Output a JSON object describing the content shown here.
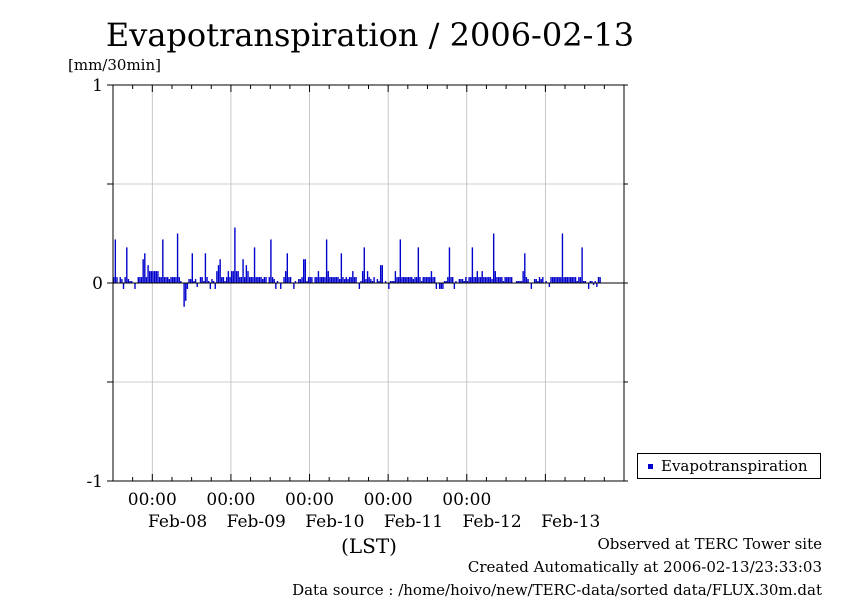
{
  "chart_data": {
    "type": "bar",
    "title": "Evapotranspiration / 2006-02-13",
    "ylabel": "[mm/30min]",
    "xlabel": "(LST)",
    "ylim": [
      -1,
      1
    ],
    "yticks": [
      "1",
      "0",
      "-1"
    ],
    "x_axis": {
      "start": "2006-02-07 12:00",
      "end": "2006-02-13 24:00",
      "time_ticks": [
        "00:00",
        "00:00",
        "00:00",
        "00:00",
        "00:00"
      ],
      "date_ticks": [
        "Feb-08",
        "Feb-09",
        "Feb-10",
        "Feb-11",
        "Feb-12",
        "Feb-13"
      ]
    },
    "grid": true,
    "legend_position": "right",
    "series": [
      {
        "name": "Evapotranspiration",
        "color": "#0000cc",
        "interval_minutes": 30,
        "values": [
          0.03,
          0.22,
          0.03,
          0,
          0.03,
          0.02,
          -0.03,
          0.03,
          0.18,
          0.02,
          0.01,
          0.01,
          0,
          -0.03,
          0,
          0.03,
          0.03,
          0.03,
          0.12,
          0.15,
          0.03,
          0.09,
          0.06,
          0.06,
          0.06,
          0.06,
          0.06,
          0.06,
          0.03,
          0.03,
          0.22,
          0.03,
          0.03,
          0.03,
          0.02,
          0.03,
          0.03,
          0.03,
          0.03,
          0.25,
          0.03,
          0.01,
          0,
          -0.12,
          -0.09,
          -0.03,
          0.02,
          0.02,
          0.15,
          0.01,
          0.02,
          -0.02,
          0,
          0.03,
          0.03,
          0.01,
          0.15,
          0.03,
          0.01,
          -0.03,
          0.02,
          0.01,
          -0.03,
          0.06,
          0.09,
          0.12,
          0.03,
          0.03,
          0.01,
          0.03,
          0.06,
          0.03,
          0.06,
          0.06,
          0.28,
          0.06,
          0.06,
          0.03,
          0.03,
          0.12,
          0.03,
          0.09,
          0.06,
          0.03,
          0.03,
          0.03,
          0.18,
          0.03,
          0.03,
          0.03,
          0.03,
          0.02,
          0.03,
          0.03,
          0,
          0.03,
          0.22,
          0.03,
          0.02,
          -0.03,
          0.01,
          0,
          -0.03,
          0,
          0.03,
          0.06,
          0.15,
          0.03,
          0.03,
          0,
          -0.03,
          0.01,
          0,
          0.02,
          0.02,
          0.03,
          0.12,
          0.12,
          0.01,
          0.03,
          0.03,
          0.03,
          0,
          0.03,
          0.03,
          0.06,
          0.03,
          0.03,
          0.03,
          0.03,
          0.22,
          0.06,
          0.03,
          0.03,
          0.03,
          0.03,
          0.03,
          0.03,
          0.02,
          0.15,
          0.03,
          0.02,
          0.03,
          0.02,
          0.03,
          0.03,
          0.06,
          0.03,
          0.03,
          0,
          -0.03,
          0.01,
          0.06,
          0.18,
          0.02,
          0.06,
          0.03,
          0.02,
          0.01,
          0.03,
          0,
          0.02,
          0.01,
          0.09,
          0.09,
          0,
          0.01,
          0,
          -0.03,
          0.01,
          0.01,
          0.01,
          0.06,
          0.03,
          0.03,
          0.22,
          0.03,
          0.03,
          0.03,
          0.03,
          0.03,
          0.03,
          0.03,
          0.02,
          0.03,
          0.03,
          0.18,
          0.03,
          0.01,
          0.03,
          0.03,
          0.03,
          0.03,
          0.03,
          0.06,
          0.03,
          0.03,
          -0.03,
          0,
          -0.03,
          -0.03,
          -0.03,
          0.01,
          0.01,
          0.03,
          0.18,
          0.03,
          0.03,
          -0.03,
          0.01,
          0,
          0.02,
          0.02,
          0.02,
          0.01,
          0.03,
          0.01,
          0.03,
          0.03,
          0.18,
          0.03,
          0.03,
          0.06,
          0.03,
          0.03,
          0.06,
          0.03,
          0.03,
          0.03,
          0.03,
          0.03,
          0.02,
          0.25,
          0.06,
          0.03,
          0.03,
          0.03,
          0.03,
          0.01,
          0.03,
          0.03,
          0.03,
          0.03,
          0.03,
          0,
          0,
          0.01,
          0.01,
          0.01,
          0.01,
          0.06,
          0.15,
          0.03,
          0.02,
          0,
          -0.03,
          0,
          0.02,
          0.02,
          0.01,
          0.03,
          0.02,
          0.03,
          0,
          0.01,
          0,
          -0.02,
          0.03,
          0.03,
          0.03,
          0.03,
          0.03,
          0.03,
          0.03,
          0.25,
          0.03,
          0.03,
          0.03,
          0.03,
          0.03,
          0.03,
          0.03,
          0.03,
          0.01,
          0.03,
          0.03,
          0.18,
          0.01,
          0.01,
          0,
          -0.03,
          0.01,
          0.01,
          -0.01,
          0.01,
          -0.02,
          0.03,
          0.03
        ]
      }
    ]
  },
  "footer": {
    "observed": "Observed at TERC Tower site",
    "created": "Created Automatically at 2006-02-13/23:33:03",
    "source": "Data source : /home/hoivo/new/TERC-data/sorted  data/FLUX.30m.dat"
  }
}
